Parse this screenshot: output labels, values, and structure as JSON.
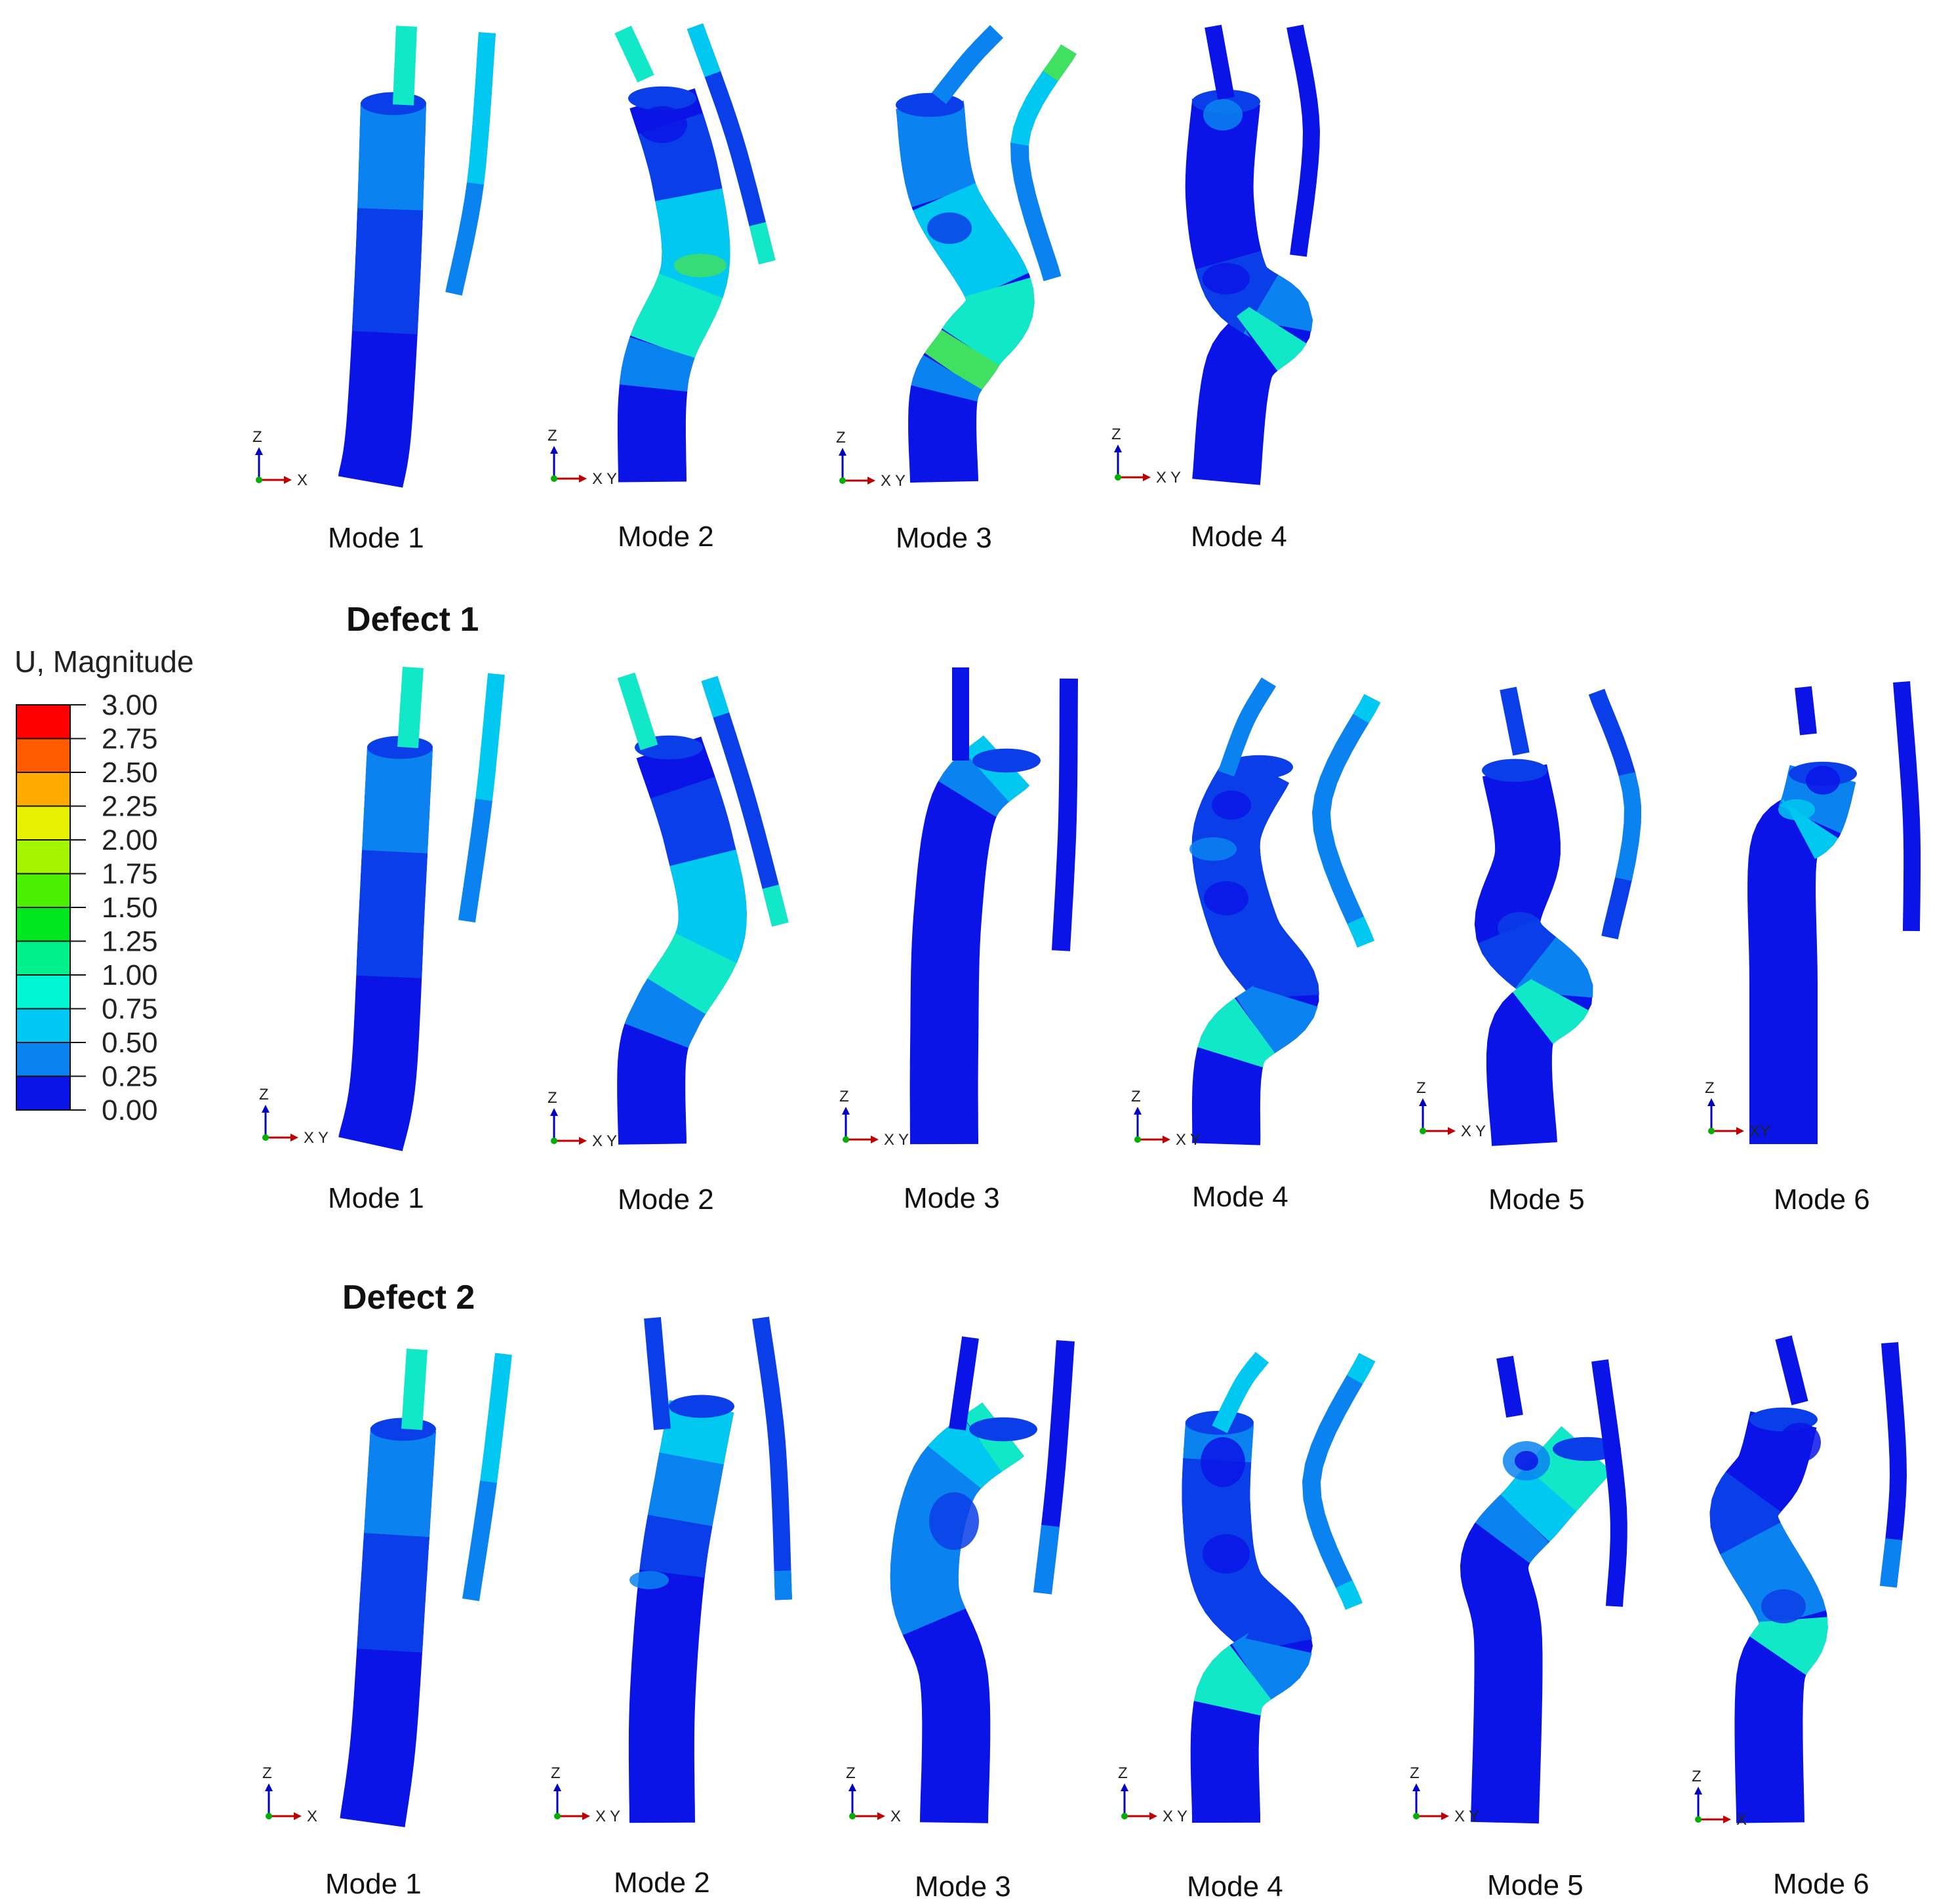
{
  "legend": {
    "title": "U, Magnitude",
    "levels": [
      {
        "value": "3.00",
        "color": "#ff0000"
      },
      {
        "value": "2.75",
        "color": "#ff5a00"
      },
      {
        "value": "2.50",
        "color": "#ffaa00"
      },
      {
        "value": "2.25",
        "color": "#e6f000"
      },
      {
        "value": "2.00",
        "color": "#a6f500"
      },
      {
        "value": "1.75",
        "color": "#4af000"
      },
      {
        "value": "1.50",
        "color": "#00e61e"
      },
      {
        "value": "1.25",
        "color": "#00f08c"
      },
      {
        "value": "1.00",
        "color": "#00f5d2"
      },
      {
        "value": "0.75",
        "color": "#00c8f5"
      },
      {
        "value": "0.50",
        "color": "#0a82f0"
      },
      {
        "value": "0.25",
        "color": "#003cf0"
      },
      {
        "value": "0.00",
        "color": ""
      }
    ]
  },
  "rows": [
    {
      "title": "",
      "modes": [
        {
          "label": "Mode 1",
          "triad": [
            "Z",
            "X",
            ""
          ]
        },
        {
          "label": "Mode 2",
          "triad": [
            "Z",
            "X",
            "Y"
          ]
        },
        {
          "label": "Mode 3",
          "triad": [
            "Z",
            "X",
            "Y"
          ]
        },
        {
          "label": "Mode 4",
          "triad": [
            "Z",
            "X",
            "Y"
          ]
        }
      ]
    },
    {
      "title": "Defect 1",
      "modes": [
        {
          "label": "Mode 1",
          "triad": [
            "Z",
            "X",
            "Y"
          ]
        },
        {
          "label": "Mode 2",
          "triad": [
            "Z",
            "X",
            "Y"
          ]
        },
        {
          "label": "Mode 3",
          "triad": [
            "Z",
            "X",
            "Y"
          ]
        },
        {
          "label": "Mode 4",
          "triad": [
            "Z",
            "X",
            "Y"
          ]
        },
        {
          "label": "Mode 5",
          "triad": [
            "Z",
            "X",
            "Y"
          ]
        },
        {
          "label": "Mode 6",
          "triad": [
            "Z",
            "XY",
            ""
          ]
        }
      ]
    },
    {
      "title": "Defect 2",
      "modes": [
        {
          "label": "Mode 1",
          "triad": [
            "Z",
            "X",
            ""
          ]
        },
        {
          "label": "Mode 2",
          "triad": [
            "Z",
            "X",
            "Y"
          ]
        },
        {
          "label": "Mode 3",
          "triad": [
            "Z",
            "X",
            ""
          ]
        },
        {
          "label": "Mode 4",
          "triad": [
            "Z",
            "X",
            "Y"
          ]
        },
        {
          "label": "Mode 5",
          "triad": [
            "Z",
            "X",
            "Y"
          ]
        },
        {
          "label": "Mode 6",
          "triad": [
            "Z",
            "X",
            ""
          ]
        }
      ]
    }
  ],
  "colors": {
    "base": "#0a14e6",
    "band1": "#0a3ee8",
    "band2": "#0a82f0",
    "band3": "#00c8f0",
    "band4": "#10e8c8",
    "hot": "#40e060",
    "x_axis": "#c00000",
    "y_axis": "#00b000",
    "z_axis": "#0000c0"
  }
}
